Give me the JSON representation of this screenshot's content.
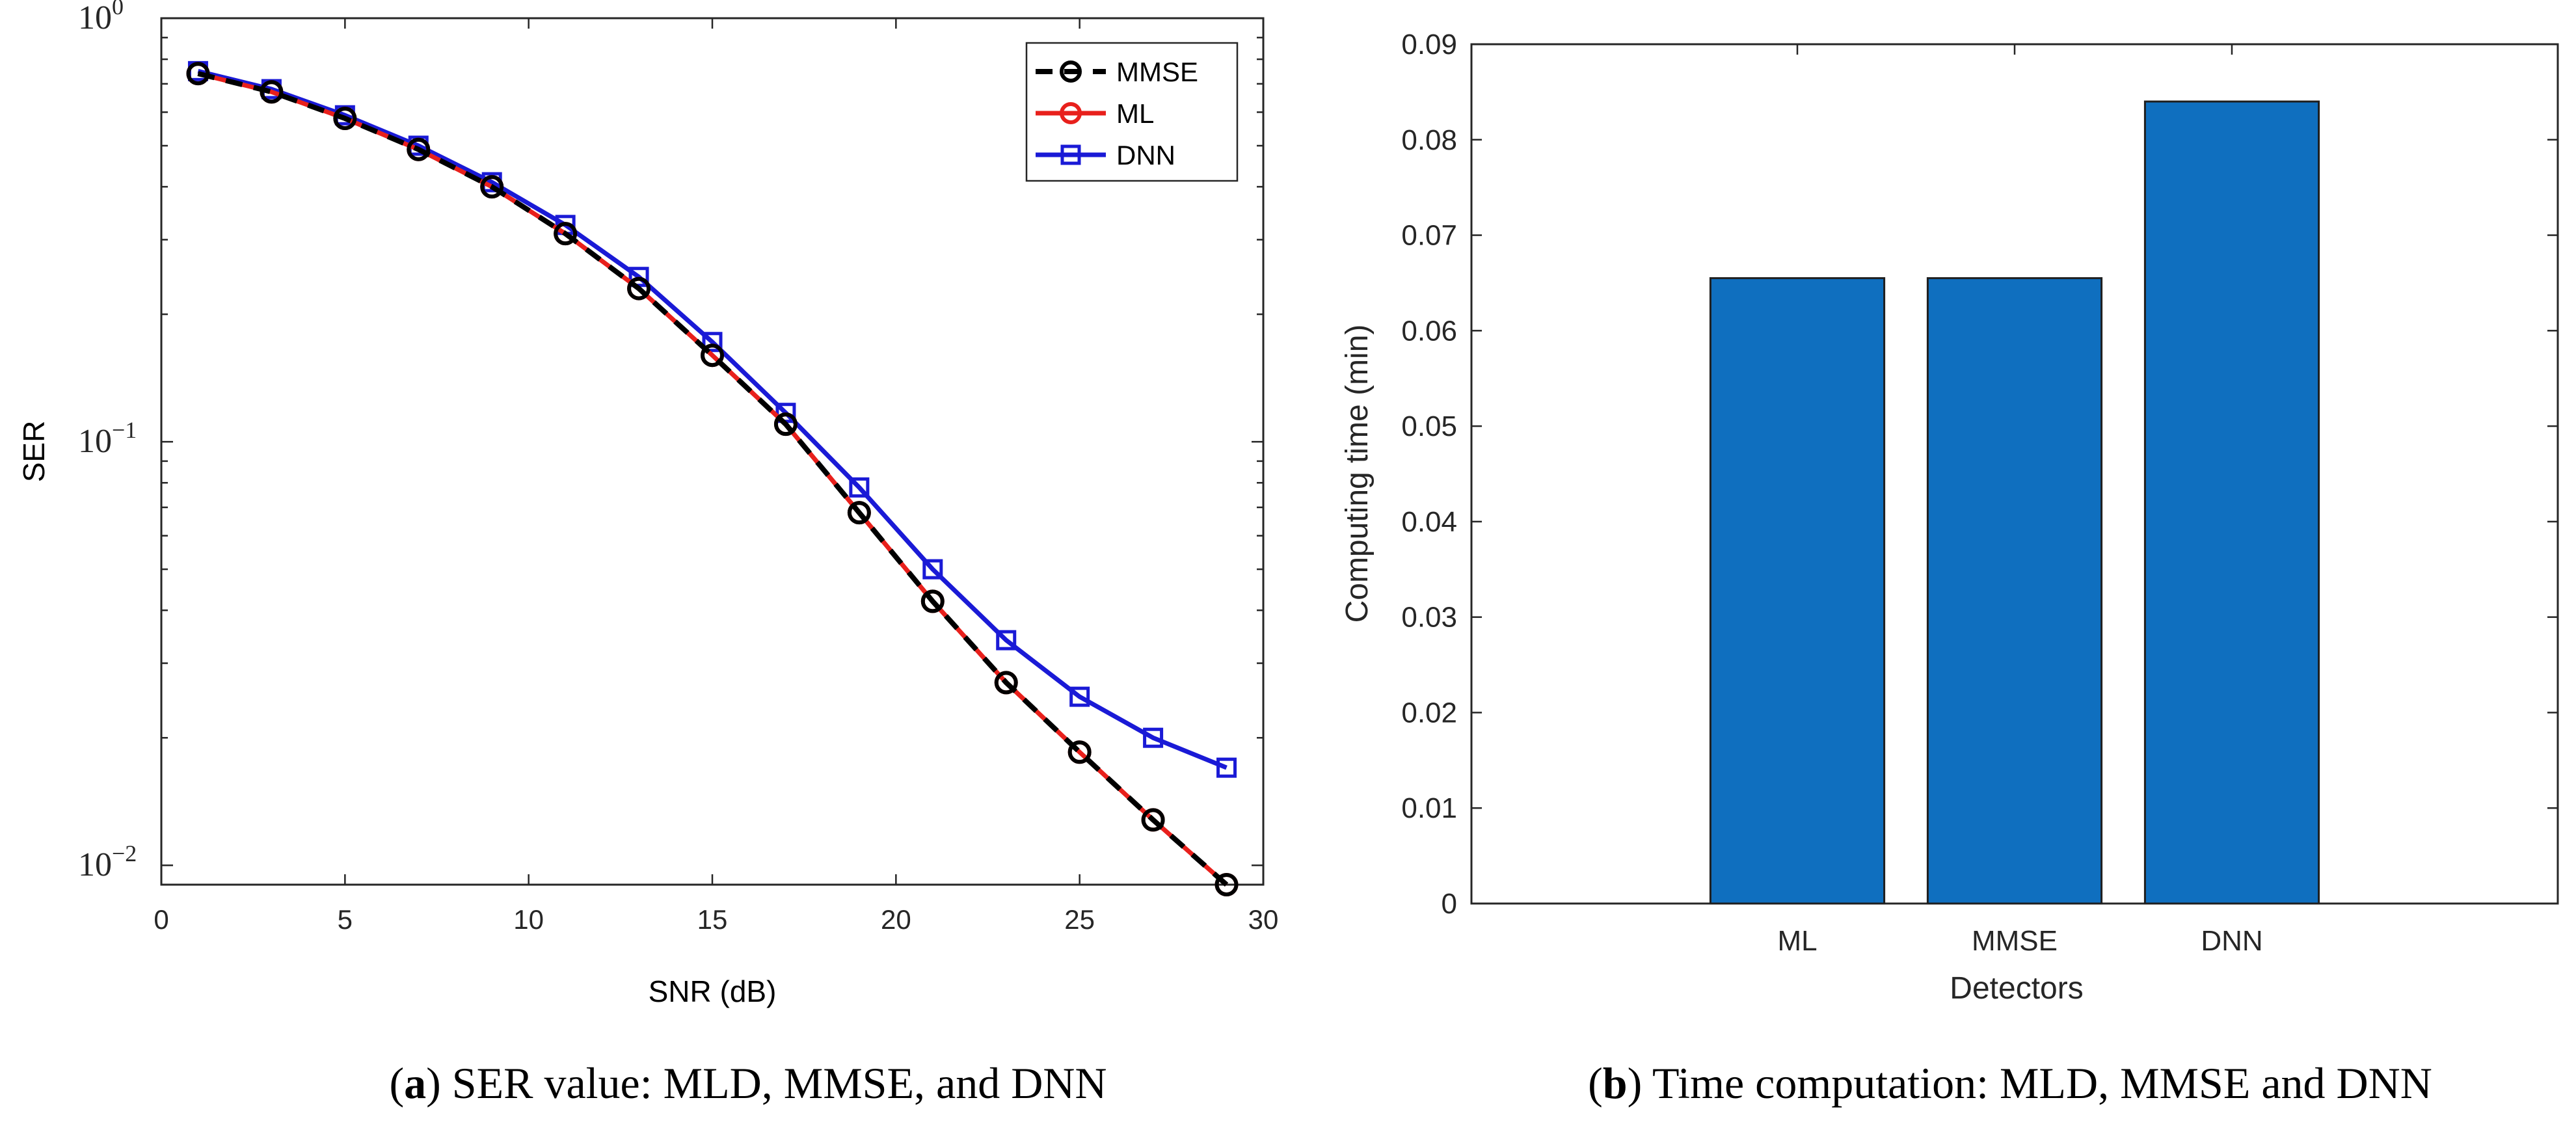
{
  "chart_data": [
    {
      "type": "line",
      "yscale": "log",
      "xlabel": "SNR (dB)",
      "ylabel": "SER",
      "xlim": [
        0,
        30
      ],
      "ylim": [
        0.009,
        1
      ],
      "x_ticks": [
        0,
        5,
        10,
        15,
        20,
        25,
        30
      ],
      "y_ticks": [
        {
          "value": 1,
          "base": "10",
          "exp": "0"
        },
        {
          "value": 0.1,
          "base": "10",
          "exp": "−1"
        },
        {
          "value": 0.01,
          "base": "10",
          "exp": "−2"
        }
      ],
      "legend_position": "top-right",
      "x": [
        1,
        3,
        5,
        7,
        9,
        11,
        13,
        15,
        17,
        19,
        21,
        23,
        25,
        27,
        29
      ],
      "series": [
        {
          "name": "MMSE",
          "color": "#000000",
          "line": "dashed",
          "marker": "circle",
          "values": [
            0.74,
            0.67,
            0.58,
            0.49,
            0.4,
            0.31,
            0.23,
            0.16,
            0.11,
            0.068,
            0.042,
            0.027,
            0.0185,
            0.0128,
            0.009
          ]
        },
        {
          "name": "ML",
          "color": "#e8201c",
          "line": "solid",
          "marker": "circle",
          "values": [
            0.74,
            0.67,
            0.58,
            0.49,
            0.4,
            0.31,
            0.23,
            0.16,
            0.11,
            0.068,
            0.042,
            0.027,
            0.0185,
            0.0128,
            0.009
          ]
        },
        {
          "name": "DNN",
          "color": "#1a1ad6",
          "line": "solid",
          "marker": "square",
          "values": [
            0.75,
            0.68,
            0.59,
            0.5,
            0.41,
            0.325,
            0.245,
            0.172,
            0.117,
            0.078,
            0.05,
            0.034,
            0.025,
            0.02,
            0.017
          ]
        }
      ],
      "caption": {
        "label": "a",
        "text": ") SER value: MLD, MMSE, and DNN",
        "prefix": "("
      }
    },
    {
      "type": "bar",
      "xlabel": "Detectors",
      "ylabel": "Computing time (min)",
      "ylim": [
        0,
        0.09
      ],
      "y_ticks": [
        "0",
        "0.01",
        "0.02",
        "0.03",
        "0.04",
        "0.05",
        "0.06",
        "0.07",
        "0.08",
        "0.09"
      ],
      "y_tick_values": [
        0,
        0.01,
        0.02,
        0.03,
        0.04,
        0.05,
        0.06,
        0.07,
        0.08,
        0.09
      ],
      "categories": [
        "ML",
        "MMSE",
        "DNN"
      ],
      "values": [
        0.0655,
        0.0655,
        0.084
      ],
      "bar_color": "#0f6fbf",
      "caption": {
        "label": "b",
        "text": ") Time computation: MLD, MMSE and DNN",
        "prefix": "("
      }
    }
  ]
}
